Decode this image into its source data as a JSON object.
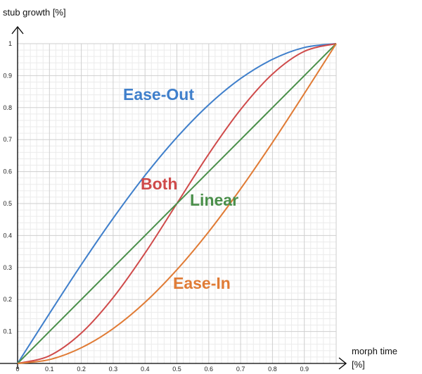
{
  "chart_data": {
    "type": "line",
    "title": "",
    "ylabel": "stub growth [%]",
    "xlabel": "morph time",
    "xlabel_unit": "[%]",
    "xlim": [
      0,
      1
    ],
    "ylim": [
      0,
      1
    ],
    "x_ticks": [
      "0",
      "0.1",
      "0.2",
      "0.3",
      "0.4",
      "0.5",
      "0.6",
      "0.7",
      "0.8",
      "0.9"
    ],
    "y_ticks": [
      "0",
      "0.1",
      "0.2",
      "0.3",
      "0.4",
      "0.5",
      "0.6",
      "0.7",
      "0.8",
      "0.9",
      "1"
    ],
    "grid": true,
    "x": [
      0,
      0.1,
      0.2,
      0.3,
      0.4,
      0.5,
      0.6,
      0.7,
      0.8,
      0.9,
      1.0
    ],
    "series": [
      {
        "name": "Ease-Out",
        "color": "#3f7fcb",
        "values": [
          0,
          0.156,
          0.309,
          0.454,
          0.588,
          0.707,
          0.809,
          0.891,
          0.951,
          0.988,
          1.0
        ]
      },
      {
        "name": "Both",
        "color": "#cf4a4a",
        "values": [
          0,
          0.024,
          0.095,
          0.206,
          0.345,
          0.5,
          0.655,
          0.794,
          0.905,
          0.976,
          1.0
        ]
      },
      {
        "name": "Linear",
        "color": "#4a8f4a",
        "values": [
          0,
          0.1,
          0.2,
          0.3,
          0.4,
          0.5,
          0.6,
          0.7,
          0.8,
          0.9,
          1.0
        ]
      },
      {
        "name": "Ease-In",
        "color": "#e07b35",
        "values": [
          0,
          0.012,
          0.049,
          0.109,
          0.191,
          0.293,
          0.412,
          0.546,
          0.691,
          0.844,
          1.0
        ]
      }
    ]
  }
}
